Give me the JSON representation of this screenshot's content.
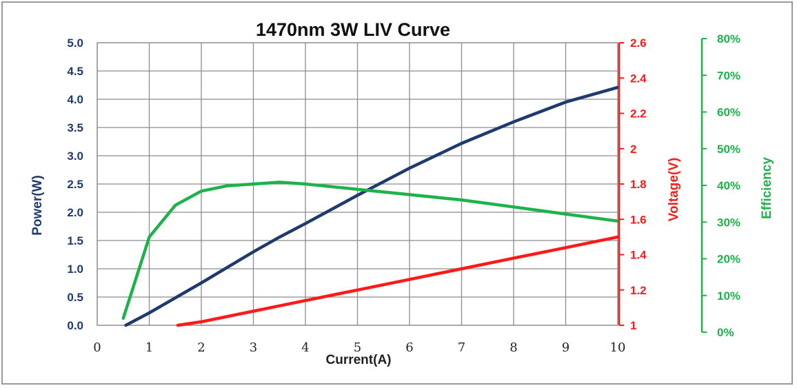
{
  "chart_data": {
    "type": "line",
    "title": "1470nm 3W LIV Curve",
    "xlabel": "Current(A)",
    "x_ticks": [
      "0",
      "1",
      "2",
      "3",
      "4",
      "5",
      "6",
      "7",
      "8",
      "9",
      "10"
    ],
    "xlim": [
      0,
      10
    ],
    "axes": {
      "power": {
        "label": "Power(W)",
        "ticks": [
          "0.0",
          "0.5",
          "1.0",
          "1.5",
          "2.0",
          "2.5",
          "3.0",
          "3.5",
          "4.0",
          "4.5",
          "5.0"
        ],
        "ylim": [
          0,
          5
        ],
        "color": "#1f3b6e"
      },
      "voltage": {
        "label": "Voltage(V)",
        "ticks": [
          "1",
          "1.2",
          "1.4",
          "1.6",
          "1.8",
          "2",
          "2.2",
          "2.4",
          "2.6"
        ],
        "ylim": [
          1,
          2.6
        ],
        "color": "#ff1a1a"
      },
      "efficiency": {
        "label": "Efficiency",
        "ticks": [
          "0%",
          "10%",
          "20%",
          "30%",
          "40%",
          "50%",
          "60%",
          "70%",
          "80%"
        ],
        "ylim": [
          0,
          80
        ],
        "color": "#1db24a"
      }
    },
    "series": [
      {
        "axis": "power",
        "color": "#1f3b6e",
        "x": [
          0.55,
          1,
          2,
          3,
          3.5,
          4,
          5,
          6,
          7,
          8,
          9,
          10
        ],
        "y": [
          0.0,
          0.22,
          0.75,
          1.3,
          1.56,
          1.8,
          2.3,
          2.78,
          3.22,
          3.6,
          3.95,
          4.21
        ]
      },
      {
        "axis": "voltage",
        "color": "#ff1a1a",
        "x": [
          1.55,
          2,
          3,
          4,
          5,
          6,
          7,
          8,
          9,
          10
        ],
        "y": [
          1.0,
          1.02,
          1.08,
          1.14,
          1.2,
          1.26,
          1.32,
          1.38,
          1.44,
          1.5
        ]
      },
      {
        "axis": "efficiency",
        "color": "#1db24a",
        "x": [
          0.5,
          1,
          1.5,
          2,
          2.5,
          3,
          3.5,
          4,
          5,
          6,
          7,
          8,
          9,
          10
        ],
        "y": [
          2,
          25,
          34,
          38,
          39.5,
          40,
          40.5,
          40,
          38.5,
          37,
          35.5,
          33.5,
          31.5,
          29.5
        ]
      }
    ],
    "grid": true
  }
}
